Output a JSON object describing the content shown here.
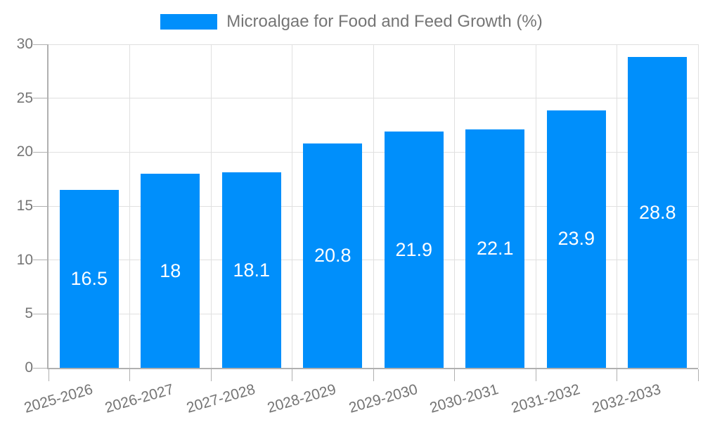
{
  "legend": {
    "label": "Microalgae for Food and Feed Growth (%)",
    "swatch_color": "#008FFB"
  },
  "chart_data": {
    "type": "bar",
    "title": "Microalgae for Food and Feed Growth (%)",
    "categories": [
      "2025-2026",
      "2026-2027",
      "2027-2028",
      "2028-2029",
      "2029-2030",
      "2030-2031",
      "2031-2032",
      "2032-2033"
    ],
    "values": [
      16.5,
      18,
      18.1,
      20.8,
      21.9,
      22.1,
      23.9,
      28.8
    ],
    "xlabel": "",
    "ylabel": "",
    "ylim": [
      0,
      30
    ],
    "ytick_step": 5,
    "yticks": [
      0,
      5,
      10,
      15,
      20,
      25,
      30
    ],
    "grid": true,
    "legend_position": "top",
    "bar_color": "#008FFB",
    "bar_label_color": "#FFFFFF",
    "axis_text_color": "#757575",
    "grid_color": "#E0E0E0",
    "axis_line_color": "#B0B0B0",
    "background": "#FFFFFF"
  }
}
